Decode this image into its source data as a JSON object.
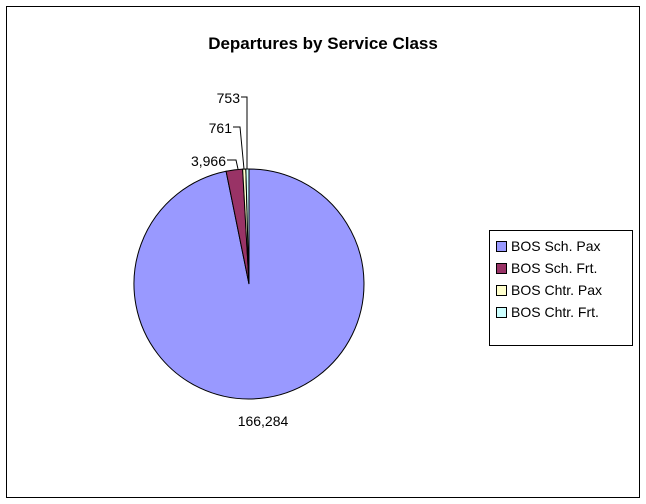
{
  "chart_data": {
    "type": "pie",
    "title": "Departures by Service Class",
    "categories": [
      "BOS Sch. Pax",
      "BOS Sch. Frt.",
      "BOS Chtr. Pax",
      "BOS Chtr. Frt."
    ],
    "values": [
      166284,
      3966,
      761,
      753
    ],
    "value_labels": [
      "166,284",
      "3,966",
      "761",
      "753"
    ],
    "colors": [
      "#9999ff",
      "#993366",
      "#ffffcc",
      "#ccffff"
    ],
    "legend_position": "right"
  }
}
